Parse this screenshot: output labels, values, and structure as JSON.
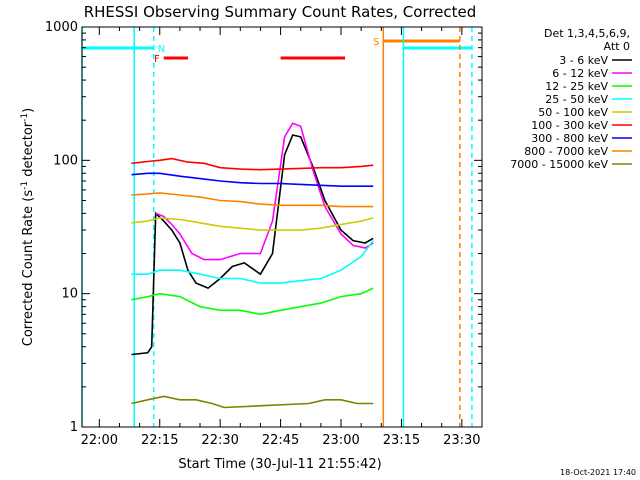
{
  "chart_data": {
    "type": "line",
    "title": "RHESSI Observing Summary Count Rates, Corrected",
    "xlabel": "Start Time (30-Jul-11 21:55:42)",
    "ylabel_main": "Corrected Count Rate (s",
    "ylabel_sup1": "-1",
    "ylabel_mid": " detector",
    "ylabel_sup2": "-1",
    "ylabel_end": ")",
    "footer_date": "18-Oct-2021 17:40",
    "y_scale": "log",
    "ylim": [
      1,
      1000
    ],
    "xlim": [
      "21:55:42",
      "23:35:00"
    ],
    "x_ticks": [
      "22:00",
      "22:15",
      "22:30",
      "22:45",
      "23:00",
      "23:15",
      "23:30"
    ],
    "y_ticks": [
      "1",
      "10",
      "100",
      "1000"
    ],
    "legend_header": [
      "Det 1,3,4,5,6,9,",
      "Att 0"
    ],
    "series": [
      {
        "name": "3 - 6 keV",
        "color": "#000000",
        "points": [
          [
            "22:08",
            3.5
          ],
          [
            "22:12",
            3.6
          ],
          [
            "22:13",
            4
          ],
          [
            "22:14",
            40
          ],
          [
            "22:16",
            35
          ],
          [
            "22:18",
            30
          ],
          [
            "22:20",
            24
          ],
          [
            "22:22",
            15
          ],
          [
            "22:24",
            12
          ],
          [
            "22:27",
            11
          ],
          [
            "22:30",
            13
          ],
          [
            "22:33",
            16
          ],
          [
            "22:36",
            17
          ],
          [
            "22:40",
            14
          ],
          [
            "22:43",
            20
          ],
          [
            "22:46",
            110
          ],
          [
            "22:48",
            155
          ],
          [
            "22:50",
            150
          ],
          [
            "22:53",
            90
          ],
          [
            "22:56",
            50
          ],
          [
            "23:00",
            30
          ],
          [
            "23:03",
            25
          ],
          [
            "23:06",
            24
          ],
          [
            "23:08",
            26
          ]
        ]
      },
      {
        "name": "6 - 12 keV",
        "color": "#ff00ff",
        "points": [
          [
            "22:14",
            40
          ],
          [
            "22:16",
            38
          ],
          [
            "22:18",
            33
          ],
          [
            "22:20",
            28
          ],
          [
            "22:23",
            20
          ],
          [
            "22:26",
            18
          ],
          [
            "22:30",
            18
          ],
          [
            "22:35",
            20
          ],
          [
            "22:40",
            20
          ],
          [
            "22:43",
            35
          ],
          [
            "22:46",
            150
          ],
          [
            "22:48",
            190
          ],
          [
            "22:50",
            180
          ],
          [
            "22:53",
            85
          ],
          [
            "22:56",
            45
          ],
          [
            "23:00",
            28
          ],
          [
            "23:03",
            23
          ],
          [
            "23:06",
            22
          ],
          [
            "23:08",
            24
          ]
        ]
      },
      {
        "name": "12 - 25 keV",
        "color": "#00ff00",
        "points": [
          [
            "22:08",
            9
          ],
          [
            "22:12",
            9.5
          ],
          [
            "22:15",
            10
          ],
          [
            "22:20",
            9.5
          ],
          [
            "22:25",
            8
          ],
          [
            "22:30",
            7.5
          ],
          [
            "22:35",
            7.5
          ],
          [
            "22:40",
            7
          ],
          [
            "22:45",
            7.5
          ],
          [
            "22:50",
            8
          ],
          [
            "22:55",
            8.5
          ],
          [
            "23:00",
            9.5
          ],
          [
            "23:05",
            10
          ],
          [
            "23:08",
            11
          ]
        ]
      },
      {
        "name": "25 - 50 keV",
        "color": "#00ffff",
        "points": [
          [
            "22:08",
            14
          ],
          [
            "22:12",
            14
          ],
          [
            "22:15",
            15
          ],
          [
            "22:20",
            15
          ],
          [
            "22:25",
            14
          ],
          [
            "22:30",
            13
          ],
          [
            "22:35",
            13
          ],
          [
            "22:40",
            12
          ],
          [
            "22:45",
            12
          ],
          [
            "22:50",
            12.5
          ],
          [
            "22:55",
            13
          ],
          [
            "23:00",
            15
          ],
          [
            "23:05",
            19
          ],
          [
            "23:08",
            25
          ]
        ]
      },
      {
        "name": "50 - 100 keV",
        "color": "#cccc00",
        "points": [
          [
            "22:08",
            34
          ],
          [
            "22:12",
            35
          ],
          [
            "22:15",
            37
          ],
          [
            "22:20",
            36
          ],
          [
            "22:25",
            34
          ],
          [
            "22:30",
            32
          ],
          [
            "22:35",
            31
          ],
          [
            "22:40",
            30
          ],
          [
            "22:45",
            30
          ],
          [
            "22:50",
            30
          ],
          [
            "22:55",
            31
          ],
          [
            "23:00",
            33
          ],
          [
            "23:05",
            35
          ],
          [
            "23:08",
            37
          ]
        ]
      },
      {
        "name": "100 - 300 keV",
        "color": "#ff0000",
        "points": [
          [
            "22:08",
            95
          ],
          [
            "22:12",
            98
          ],
          [
            "22:15",
            100
          ],
          [
            "22:18",
            103
          ],
          [
            "22:22",
            97
          ],
          [
            "22:26",
            95
          ],
          [
            "22:30",
            88
          ],
          [
            "22:35",
            86
          ],
          [
            "22:40",
            85
          ],
          [
            "22:45",
            86
          ],
          [
            "22:50",
            87
          ],
          [
            "22:55",
            88
          ],
          [
            "23:00",
            88
          ],
          [
            "23:05",
            90
          ],
          [
            "23:08",
            92
          ]
        ]
      },
      {
        "name": "300 - 800 keV",
        "color": "#0000ff",
        "points": [
          [
            "22:08",
            78
          ],
          [
            "22:12",
            80
          ],
          [
            "22:15",
            80
          ],
          [
            "22:20",
            76
          ],
          [
            "22:25",
            73
          ],
          [
            "22:30",
            70
          ],
          [
            "22:35",
            68
          ],
          [
            "22:40",
            67
          ],
          [
            "22:45",
            67
          ],
          [
            "22:50",
            66
          ],
          [
            "22:55",
            65
          ],
          [
            "23:00",
            64
          ],
          [
            "23:05",
            64
          ],
          [
            "23:08",
            64
          ]
        ]
      },
      {
        "name": "800 - 7000 keV",
        "color": "#ff8000",
        "points": [
          [
            "22:08",
            55
          ],
          [
            "22:12",
            56
          ],
          [
            "22:15",
            57
          ],
          [
            "22:20",
            55
          ],
          [
            "22:25",
            53
          ],
          [
            "22:30",
            50
          ],
          [
            "22:35",
            49
          ],
          [
            "22:40",
            47
          ],
          [
            "22:45",
            46
          ],
          [
            "22:50",
            46
          ],
          [
            "22:55",
            46
          ],
          [
            "23:00",
            45
          ],
          [
            "23:05",
            45
          ],
          [
            "23:08",
            45
          ]
        ]
      },
      {
        "name": "7000 - 15000 keV",
        "color": "#808000",
        "points": [
          [
            "22:08",
            1.5
          ],
          [
            "22:12",
            1.6
          ],
          [
            "22:16",
            1.7
          ],
          [
            "22:20",
            1.6
          ],
          [
            "22:24",
            1.6
          ],
          [
            "22:28",
            1.5
          ],
          [
            "22:31",
            1.4
          ],
          [
            "22:52",
            1.5
          ],
          [
            "22:56",
            1.6
          ],
          [
            "23:00",
            1.6
          ],
          [
            "23:04",
            1.5
          ],
          [
            "23:08",
            1.5
          ]
        ]
      }
    ],
    "orbit_flags": {
      "night": [
        {
          "label": "N",
          "color": "#00ffff",
          "ranges": [
            [
              "21:55:42",
              "22:13:30"
            ],
            [
              "23:15:30",
              "23:32:30"
            ]
          ]
        }
      ],
      "flare": [
        {
          "label": "F",
          "color": "#ff0000",
          "ranges": [
            [
              "22:16:00",
              "22:22:00"
            ],
            [
              "22:45:00",
              "23:01:00"
            ]
          ]
        }
      ],
      "saa": [
        {
          "label": "S",
          "color": "#ff8000",
          "ranges": [
            [
              "23:10:30",
              "23:29:30"
            ]
          ]
        }
      ]
    },
    "vertical_markers": [
      {
        "time": "22:08:40",
        "color": "#00ffff",
        "style": "solid"
      },
      {
        "time": "22:13:30",
        "color": "#00ffff",
        "style": "dashed"
      },
      {
        "time": "23:10:30",
        "color": "#ff8000",
        "style": "solid"
      },
      {
        "time": "23:15:30",
        "color": "#00ffff",
        "style": "solid"
      },
      {
        "time": "23:29:30",
        "color": "#ff8000",
        "style": "dashed"
      },
      {
        "time": "23:32:30",
        "color": "#00ffff",
        "style": "dashed"
      },
      {
        "time": "21:55:42",
        "color": "#00ffff",
        "style": "solid"
      }
    ]
  }
}
